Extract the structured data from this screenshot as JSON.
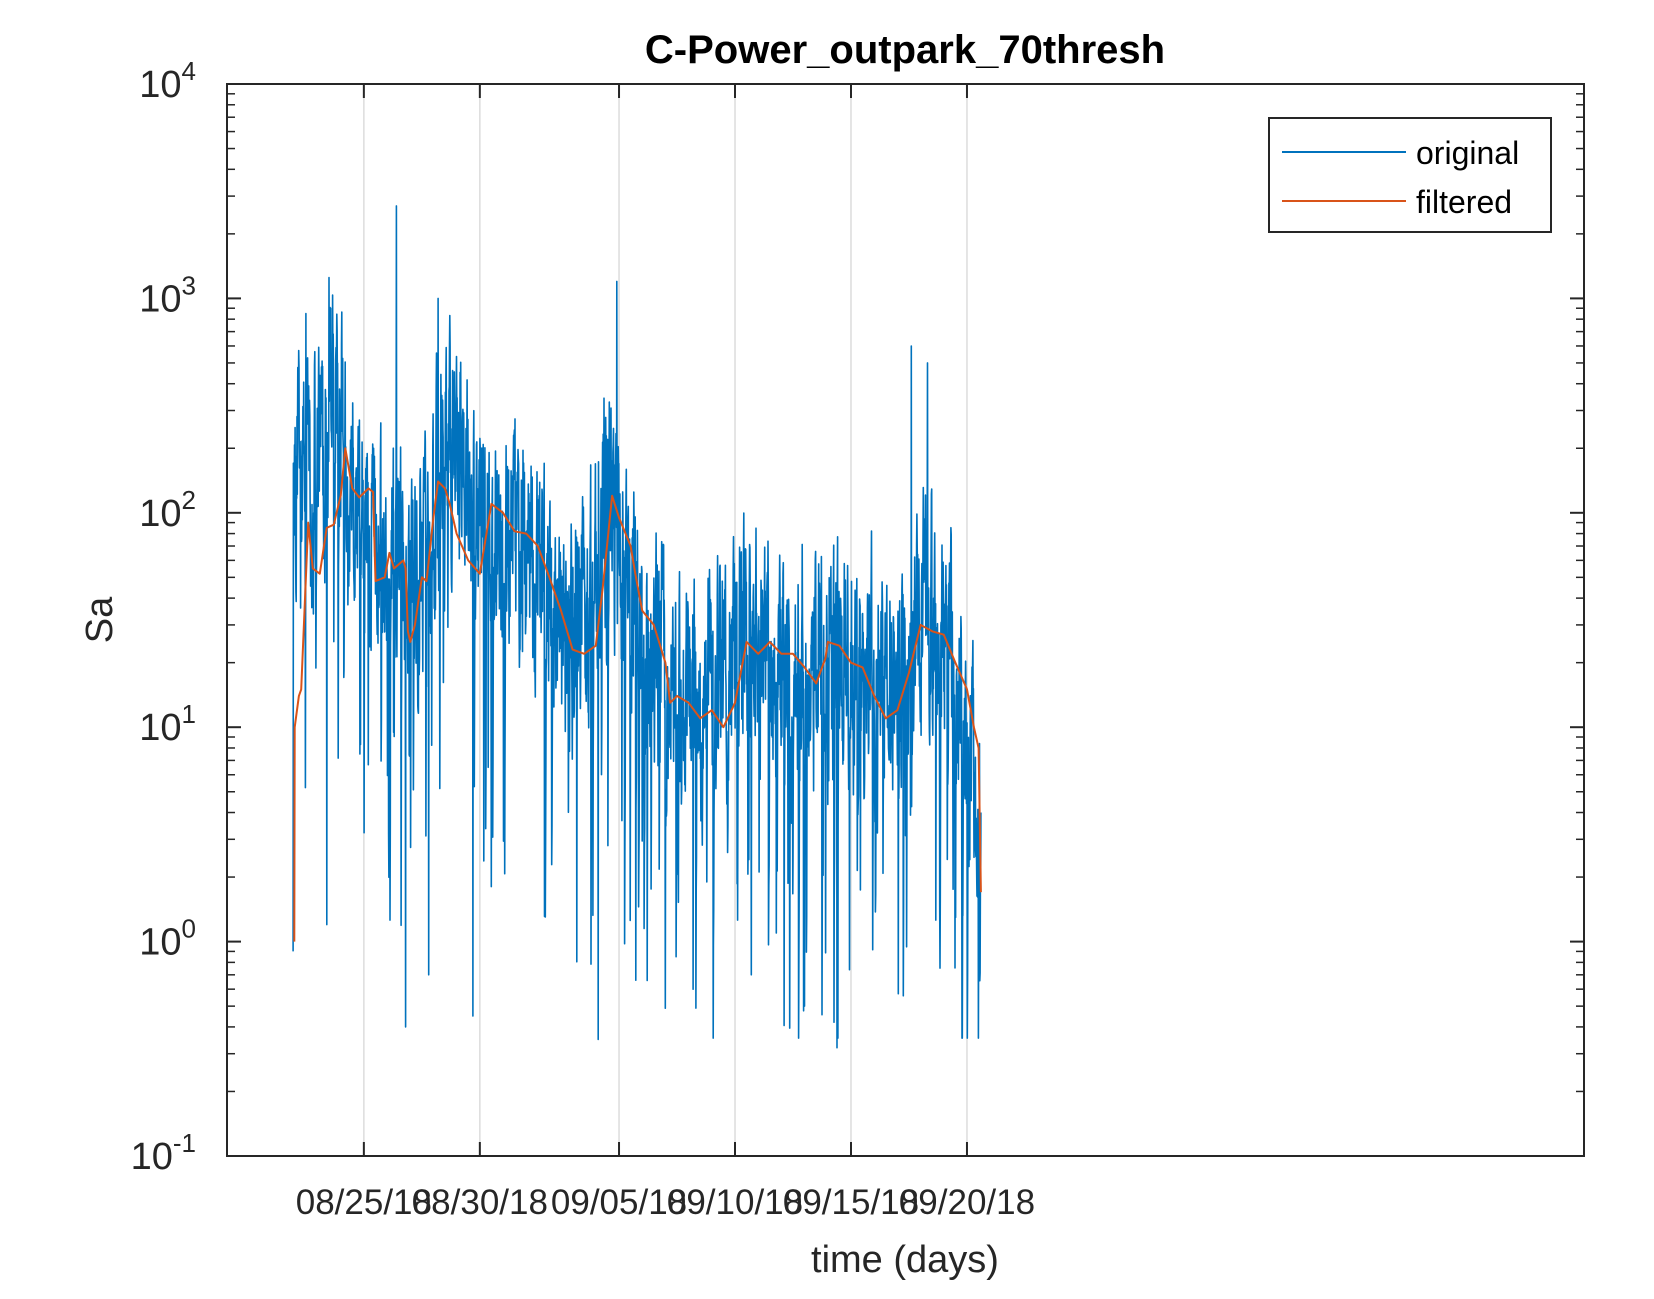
{
  "chart_data": {
    "type": "line",
    "title": "C-Power_outpark_70thresh",
    "xlabel": "time (days)",
    "ylabel": "Sa",
    "yscale": "log",
    "ylim": [
      0.1,
      10000
    ],
    "xlim_days": [
      -5.9,
      52.6
    ],
    "grid": "vertical",
    "legend_position": "top-right",
    "x_ticks": [
      {
        "day": 0,
        "label": "08/25/18"
      },
      {
        "day": 5,
        "label": "08/30/18"
      },
      {
        "day": 11,
        "label": "09/05/18"
      },
      {
        "day": 16,
        "label": "09/10/18"
      },
      {
        "day": 21,
        "label": "09/15/18"
      },
      {
        "day": 26,
        "label": "09/20/18"
      }
    ],
    "y_ticks": [
      {
        "value": 0.1,
        "base": "10",
        "exp": "-1"
      },
      {
        "value": 1,
        "base": "10",
        "exp": "0"
      },
      {
        "value": 10,
        "base": "10",
        "exp": "1"
      },
      {
        "value": 100,
        "base": "10",
        "exp": "2"
      },
      {
        "value": 1000,
        "base": "10",
        "exp": "3"
      },
      {
        "value": 10000,
        "base": "10",
        "exp": "4"
      }
    ],
    "series": [
      {
        "name": "original",
        "color": "#0072BD",
        "style": "noisy",
        "envelope": [
          [
            -3.0,
            150
          ],
          [
            -2.8,
            400
          ],
          [
            -2.5,
            200
          ],
          [
            -2.0,
            150
          ],
          [
            -1.5,
            250
          ],
          [
            -1.2,
            400
          ],
          [
            -0.8,
            150
          ],
          [
            0.0,
            100
          ],
          [
            0.8,
            60
          ],
          [
            1.5,
            70
          ],
          [
            2.0,
            60
          ],
          [
            2.5,
            60
          ],
          [
            3.0,
            100
          ],
          [
            3.5,
            250
          ],
          [
            4.0,
            150
          ],
          [
            5.0,
            100
          ],
          [
            6.0,
            80
          ],
          [
            7.0,
            60
          ],
          [
            8.0,
            30
          ],
          [
            9.0,
            25
          ],
          [
            10.0,
            50
          ],
          [
            10.5,
            150
          ],
          [
            11.0,
            70
          ],
          [
            12.0,
            30
          ],
          [
            13.0,
            15
          ],
          [
            14.0,
            12
          ],
          [
            15.0,
            15
          ],
          [
            16.0,
            25
          ],
          [
            17.0,
            25
          ],
          [
            18.0,
            20
          ],
          [
            19.0,
            20
          ],
          [
            20.0,
            20
          ],
          [
            21.0,
            20
          ],
          [
            22.0,
            15
          ],
          [
            23.0,
            15
          ],
          [
            24.0,
            40
          ],
          [
            25.0,
            25
          ],
          [
            25.5,
            15
          ],
          [
            26.0,
            8
          ],
          [
            26.5,
            5
          ]
        ],
        "spikes": [
          {
            "day": -3.05,
            "value": 0.9
          },
          {
            "day": -2.5,
            "value": 850
          },
          {
            "day": -1.5,
            "value": 1250
          },
          {
            "day": -1.6,
            "value": 1.2
          },
          {
            "day": 1.4,
            "value": 2700
          },
          {
            "day": 1.8,
            "value": 0.4
          },
          {
            "day": 3.2,
            "value": 1000
          },
          {
            "day": 2.8,
            "value": 0.7
          },
          {
            "day": 4.7,
            "value": 0.45
          },
          {
            "day": 10.1,
            "value": 0.35
          },
          {
            "day": 10.9,
            "value": 1200
          },
          {
            "day": 16.7,
            "value": 0.7
          },
          {
            "day": 20.4,
            "value": 0.32
          },
          {
            "day": 23.6,
            "value": 600
          },
          {
            "day": 24.3,
            "value": 500
          },
          {
            "day": 14.2,
            "value": 0.6
          },
          {
            "day": 19.0,
            "value": 0.5
          }
        ],
        "end_value": 4
      },
      {
        "name": "filtered",
        "color": "#D95319",
        "points": [
          [
            -3.0,
            1
          ],
          [
            -2.98,
            10
          ],
          [
            -2.8,
            14
          ],
          [
            -2.7,
            15
          ],
          [
            -2.4,
            90
          ],
          [
            -2.2,
            55
          ],
          [
            -1.9,
            52
          ],
          [
            -1.6,
            85
          ],
          [
            -1.3,
            88
          ],
          [
            -1.0,
            120
          ],
          [
            -0.8,
            200
          ],
          [
            -0.5,
            130
          ],
          [
            -0.2,
            118
          ],
          [
            0.2,
            130
          ],
          [
            0.4,
            125
          ],
          [
            0.5,
            48
          ],
          [
            0.9,
            50
          ],
          [
            1.1,
            65
          ],
          [
            1.3,
            55
          ],
          [
            1.7,
            60
          ],
          [
            1.8,
            55
          ],
          [
            1.9,
            28
          ],
          [
            2.0,
            25
          ],
          [
            2.2,
            30
          ],
          [
            2.5,
            50
          ],
          [
            2.7,
            48
          ],
          [
            3.0,
            95
          ],
          [
            3.2,
            140
          ],
          [
            3.5,
            130
          ],
          [
            3.7,
            110
          ],
          [
            4.0,
            80
          ],
          [
            4.5,
            60
          ],
          [
            5.0,
            52
          ],
          [
            5.5,
            110
          ],
          [
            6.0,
            100
          ],
          [
            6.5,
            82
          ],
          [
            7.0,
            80
          ],
          [
            7.5,
            70
          ],
          [
            8.0,
            50
          ],
          [
            8.5,
            35
          ],
          [
            9.0,
            23
          ],
          [
            9.5,
            22
          ],
          [
            10.0,
            24
          ],
          [
            10.3,
            45
          ],
          [
            10.7,
            120
          ],
          [
            11.0,
            95
          ],
          [
            11.5,
            70
          ],
          [
            11.7,
            52
          ],
          [
            12.0,
            35
          ],
          [
            12.5,
            30
          ],
          [
            13.0,
            20
          ],
          [
            13.2,
            13
          ],
          [
            13.5,
            14
          ],
          [
            14.0,
            13
          ],
          [
            14.5,
            11
          ],
          [
            15.0,
            12
          ],
          [
            15.5,
            10
          ],
          [
            16.0,
            13
          ],
          [
            16.5,
            25
          ],
          [
            17.0,
            22
          ],
          [
            17.5,
            25
          ],
          [
            18.0,
            22
          ],
          [
            18.5,
            22
          ],
          [
            19.0,
            19
          ],
          [
            19.5,
            16
          ],
          [
            19.9,
            21
          ],
          [
            20.0,
            25
          ],
          [
            20.5,
            24
          ],
          [
            21.0,
            20
          ],
          [
            21.5,
            19
          ],
          [
            22.0,
            14
          ],
          [
            22.5,
            11
          ],
          [
            23.0,
            12
          ],
          [
            23.5,
            18
          ],
          [
            24.0,
            30
          ],
          [
            24.5,
            28
          ],
          [
            25.0,
            27
          ],
          [
            25.5,
            20
          ],
          [
            26.0,
            15
          ],
          [
            26.3,
            10
          ],
          [
            26.5,
            8
          ],
          [
            26.6,
            1.7
          ]
        ]
      }
    ]
  }
}
